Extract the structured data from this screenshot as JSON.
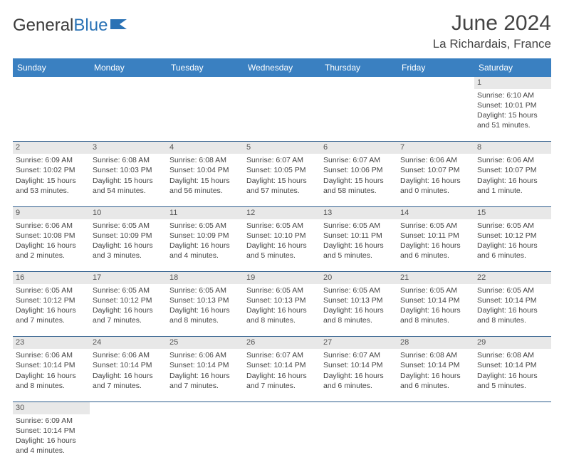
{
  "brand": {
    "name1": "General",
    "name2": "Blue"
  },
  "title": "June 2024",
  "location": "La Richardais, France",
  "colors": {
    "header_bg": "#3a80c1",
    "header_fg": "#ffffff",
    "daynum_bg": "#e8e8e8",
    "border": "#2a5a8a",
    "text": "#444444"
  },
  "day_labels": [
    "Sunday",
    "Monday",
    "Tuesday",
    "Wednesday",
    "Thursday",
    "Friday",
    "Saturday"
  ],
  "weeks": [
    [
      null,
      null,
      null,
      null,
      null,
      null,
      {
        "n": "1",
        "sr": "Sunrise: 6:10 AM",
        "ss": "Sunset: 10:01 PM",
        "d1": "Daylight: 15 hours",
        "d2": "and 51 minutes."
      }
    ],
    [
      {
        "n": "2",
        "sr": "Sunrise: 6:09 AM",
        "ss": "Sunset: 10:02 PM",
        "d1": "Daylight: 15 hours",
        "d2": "and 53 minutes."
      },
      {
        "n": "3",
        "sr": "Sunrise: 6:08 AM",
        "ss": "Sunset: 10:03 PM",
        "d1": "Daylight: 15 hours",
        "d2": "and 54 minutes."
      },
      {
        "n": "4",
        "sr": "Sunrise: 6:08 AM",
        "ss": "Sunset: 10:04 PM",
        "d1": "Daylight: 15 hours",
        "d2": "and 56 minutes."
      },
      {
        "n": "5",
        "sr": "Sunrise: 6:07 AM",
        "ss": "Sunset: 10:05 PM",
        "d1": "Daylight: 15 hours",
        "d2": "and 57 minutes."
      },
      {
        "n": "6",
        "sr": "Sunrise: 6:07 AM",
        "ss": "Sunset: 10:06 PM",
        "d1": "Daylight: 15 hours",
        "d2": "and 58 minutes."
      },
      {
        "n": "7",
        "sr": "Sunrise: 6:06 AM",
        "ss": "Sunset: 10:07 PM",
        "d1": "Daylight: 16 hours",
        "d2": "and 0 minutes."
      },
      {
        "n": "8",
        "sr": "Sunrise: 6:06 AM",
        "ss": "Sunset: 10:07 PM",
        "d1": "Daylight: 16 hours",
        "d2": "and 1 minute."
      }
    ],
    [
      {
        "n": "9",
        "sr": "Sunrise: 6:06 AM",
        "ss": "Sunset: 10:08 PM",
        "d1": "Daylight: 16 hours",
        "d2": "and 2 minutes."
      },
      {
        "n": "10",
        "sr": "Sunrise: 6:05 AM",
        "ss": "Sunset: 10:09 PM",
        "d1": "Daylight: 16 hours",
        "d2": "and 3 minutes."
      },
      {
        "n": "11",
        "sr": "Sunrise: 6:05 AM",
        "ss": "Sunset: 10:09 PM",
        "d1": "Daylight: 16 hours",
        "d2": "and 4 minutes."
      },
      {
        "n": "12",
        "sr": "Sunrise: 6:05 AM",
        "ss": "Sunset: 10:10 PM",
        "d1": "Daylight: 16 hours",
        "d2": "and 5 minutes."
      },
      {
        "n": "13",
        "sr": "Sunrise: 6:05 AM",
        "ss": "Sunset: 10:11 PM",
        "d1": "Daylight: 16 hours",
        "d2": "and 5 minutes."
      },
      {
        "n": "14",
        "sr": "Sunrise: 6:05 AM",
        "ss": "Sunset: 10:11 PM",
        "d1": "Daylight: 16 hours",
        "d2": "and 6 minutes."
      },
      {
        "n": "15",
        "sr": "Sunrise: 6:05 AM",
        "ss": "Sunset: 10:12 PM",
        "d1": "Daylight: 16 hours",
        "d2": "and 6 minutes."
      }
    ],
    [
      {
        "n": "16",
        "sr": "Sunrise: 6:05 AM",
        "ss": "Sunset: 10:12 PM",
        "d1": "Daylight: 16 hours",
        "d2": "and 7 minutes."
      },
      {
        "n": "17",
        "sr": "Sunrise: 6:05 AM",
        "ss": "Sunset: 10:12 PM",
        "d1": "Daylight: 16 hours",
        "d2": "and 7 minutes."
      },
      {
        "n": "18",
        "sr": "Sunrise: 6:05 AM",
        "ss": "Sunset: 10:13 PM",
        "d1": "Daylight: 16 hours",
        "d2": "and 8 minutes."
      },
      {
        "n": "19",
        "sr": "Sunrise: 6:05 AM",
        "ss": "Sunset: 10:13 PM",
        "d1": "Daylight: 16 hours",
        "d2": "and 8 minutes."
      },
      {
        "n": "20",
        "sr": "Sunrise: 6:05 AM",
        "ss": "Sunset: 10:13 PM",
        "d1": "Daylight: 16 hours",
        "d2": "and 8 minutes."
      },
      {
        "n": "21",
        "sr": "Sunrise: 6:05 AM",
        "ss": "Sunset: 10:14 PM",
        "d1": "Daylight: 16 hours",
        "d2": "and 8 minutes."
      },
      {
        "n": "22",
        "sr": "Sunrise: 6:05 AM",
        "ss": "Sunset: 10:14 PM",
        "d1": "Daylight: 16 hours",
        "d2": "and 8 minutes."
      }
    ],
    [
      {
        "n": "23",
        "sr": "Sunrise: 6:06 AM",
        "ss": "Sunset: 10:14 PM",
        "d1": "Daylight: 16 hours",
        "d2": "and 8 minutes."
      },
      {
        "n": "24",
        "sr": "Sunrise: 6:06 AM",
        "ss": "Sunset: 10:14 PM",
        "d1": "Daylight: 16 hours",
        "d2": "and 7 minutes."
      },
      {
        "n": "25",
        "sr": "Sunrise: 6:06 AM",
        "ss": "Sunset: 10:14 PM",
        "d1": "Daylight: 16 hours",
        "d2": "and 7 minutes."
      },
      {
        "n": "26",
        "sr": "Sunrise: 6:07 AM",
        "ss": "Sunset: 10:14 PM",
        "d1": "Daylight: 16 hours",
        "d2": "and 7 minutes."
      },
      {
        "n": "27",
        "sr": "Sunrise: 6:07 AM",
        "ss": "Sunset: 10:14 PM",
        "d1": "Daylight: 16 hours",
        "d2": "and 6 minutes."
      },
      {
        "n": "28",
        "sr": "Sunrise: 6:08 AM",
        "ss": "Sunset: 10:14 PM",
        "d1": "Daylight: 16 hours",
        "d2": "and 6 minutes."
      },
      {
        "n": "29",
        "sr": "Sunrise: 6:08 AM",
        "ss": "Sunset: 10:14 PM",
        "d1": "Daylight: 16 hours",
        "d2": "and 5 minutes."
      }
    ],
    [
      {
        "n": "30",
        "sr": "Sunrise: 6:09 AM",
        "ss": "Sunset: 10:14 PM",
        "d1": "Daylight: 16 hours",
        "d2": "and 4 minutes."
      },
      null,
      null,
      null,
      null,
      null,
      null
    ]
  ]
}
